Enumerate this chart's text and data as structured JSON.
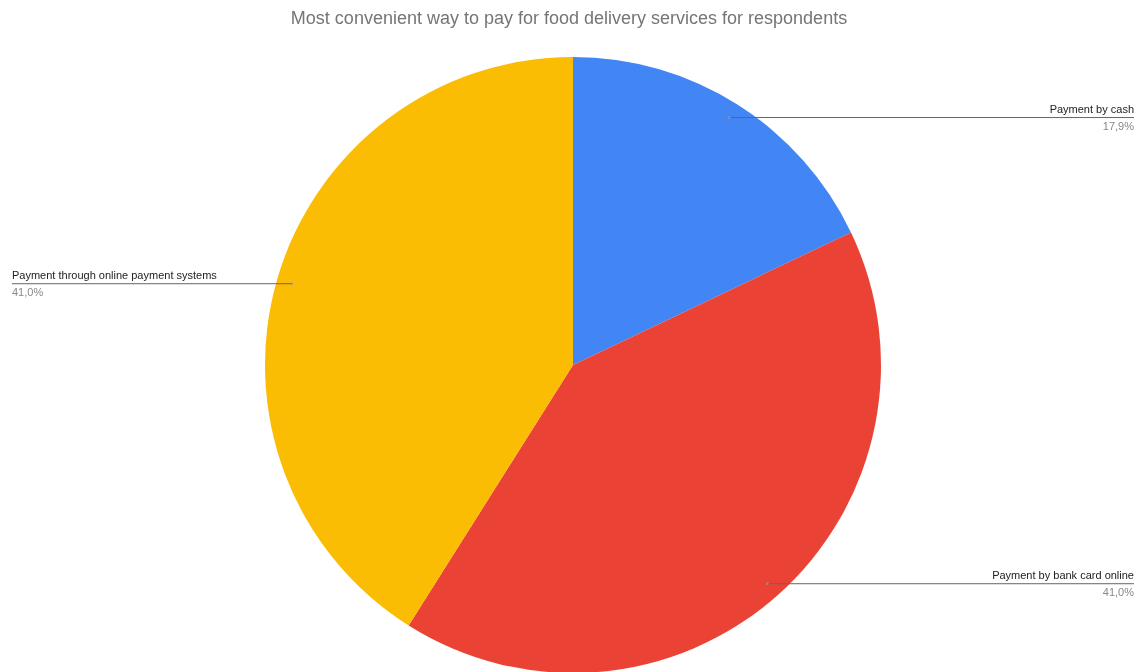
{
  "chart_data": {
    "type": "pie",
    "title": "Most convenient way to pay for food delivery services for respondents",
    "categories": [
      "Payment by cash",
      "Payment by bank card online",
      "Payment through online payment systems"
    ],
    "values": [
      17.9,
      41.0,
      41.0
    ],
    "colors": [
      "#4285f4",
      "#ea4335",
      "#fbbc04"
    ],
    "value_labels": [
      "17,9%",
      "41,0%",
      "41,0%"
    ],
    "legend": false
  }
}
